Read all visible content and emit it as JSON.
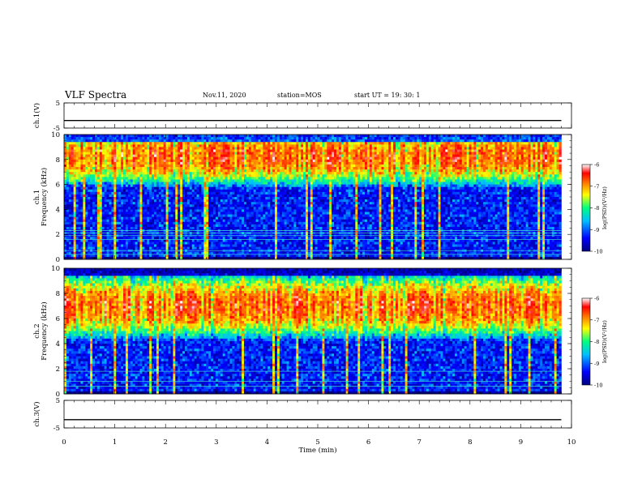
{
  "header": {
    "title": "VLF Spectra",
    "date": "Nov.11, 2020",
    "station": "station=MOS",
    "start": "start UT =   19: 30: 1"
  },
  "chart_data": [
    {
      "type": "line",
      "name": "ch1_voltage",
      "ylabel": "ch.1(V)",
      "ylim": [
        -5,
        5
      ],
      "yticks": [
        "5",
        "-5"
      ],
      "x": [
        0,
        9.8
      ],
      "values": [
        -2,
        -2
      ]
    },
    {
      "type": "heatmap",
      "name": "ch1_spectrogram",
      "ylabel": "ch.1\nFrequency (kHz)",
      "ylim": [
        0,
        10
      ],
      "yticks": [
        "0",
        "2",
        "4",
        "6",
        "8",
        "10"
      ],
      "xlim": [
        0,
        10
      ],
      "x_data_range": [
        0,
        9.8
      ],
      "band_peak_khz": [
        7.5,
        9.0
      ],
      "narrowband_lines_khz": [
        0.4,
        0.7,
        1.6,
        1.9,
        2.1,
        2.3
      ],
      "colorbar": {
        "label": "log(PSD)(V²/Hz)",
        "range": [
          -10,
          -6
        ],
        "ticks": [
          "-6",
          "-7",
          "-8",
          "-9",
          "-10"
        ]
      }
    },
    {
      "type": "heatmap",
      "name": "ch2_spectrogram",
      "ylabel": "ch.2\nFrequency (kHz)",
      "ylim": [
        0,
        10
      ],
      "yticks": [
        "0",
        "2",
        "4",
        "6",
        "8",
        "10"
      ],
      "xlim": [
        0,
        10
      ],
      "x_data_range": [
        0,
        9.8
      ],
      "band_peak_khz": [
        6.0,
        8.0
      ],
      "narrowband_lines_khz": [
        0.6,
        1.0,
        1.8
      ],
      "colorbar": {
        "label": "log(PSD)(V²/Hz)",
        "range": [
          -10,
          -6
        ],
        "ticks": [
          "-6",
          "-7",
          "-8",
          "-9",
          "-10"
        ]
      }
    },
    {
      "type": "line",
      "name": "ch3_voltage",
      "ylabel": "ch.3(V)",
      "ylim": [
        -5,
        5
      ],
      "yticks": [
        "5",
        "-5"
      ],
      "x": [
        0,
        9.8
      ],
      "values": [
        -2,
        -2
      ]
    }
  ],
  "xaxis": {
    "label": "Time (min)",
    "ticks": [
      "0",
      "1",
      "2",
      "3",
      "4",
      "5",
      "6",
      "7",
      "8",
      "9",
      "10"
    ]
  },
  "colors": {
    "colormap": [
      "#00007f",
      "#0000ff",
      "#00bfff",
      "#00ff7f",
      "#ffff00",
      "#ff7f00",
      "#ff0000",
      "#ffffff"
    ],
    "background": "#000020",
    "axis": "#000000"
  }
}
